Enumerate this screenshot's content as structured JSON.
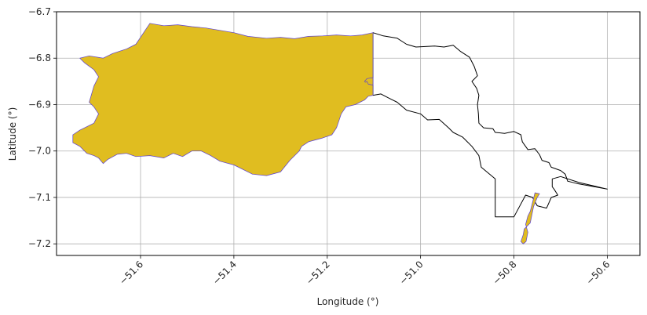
{
  "chart_data": {
    "type": "map",
    "xlabel": "Longitude (°)",
    "ylabel": "Latitude (°)",
    "xlim": [
      -51.78,
      -50.53
    ],
    "ylim": [
      -7.225,
      -6.7
    ],
    "grid": true,
    "x_ticks": [
      -51.6,
      -51.4,
      -51.2,
      -51.0,
      -50.8,
      -50.6
    ],
    "x_tick_labels": [
      "−51.6",
      "−51.4",
      "−51.2",
      "−51.0",
      "−50.8",
      "−50.6"
    ],
    "y_ticks": [
      -6.7,
      -6.8,
      -6.9,
      -7.0,
      -7.1,
      -7.2
    ],
    "y_tick_labels": [
      "−6.7",
      "−6.8",
      "−6.9",
      "−7.0",
      "−7.1",
      "−7.2"
    ],
    "colors": {
      "filled_region": "#e0bd20",
      "filled_edge": "#5a3fd6",
      "outline": "#000000",
      "grid": "#b0b0b0"
    },
    "regions": [
      {
        "style": "outline",
        "coords": [
          [
            -51.102,
            -6.745
          ],
          [
            -51.08,
            -6.752
          ],
          [
            -51.05,
            -6.757
          ],
          [
            -51.03,
            -6.77
          ],
          [
            -51.01,
            -6.776
          ],
          [
            -50.97,
            -6.774
          ],
          [
            -50.95,
            -6.776
          ],
          [
            -50.93,
            -6.772
          ],
          [
            -50.915,
            -6.785
          ],
          [
            -50.895,
            -6.798
          ],
          [
            -50.885,
            -6.818
          ],
          [
            -50.878,
            -6.838
          ],
          [
            -50.89,
            -6.85
          ],
          [
            -50.88,
            -6.865
          ],
          [
            -50.875,
            -6.88
          ],
          [
            -50.878,
            -6.9
          ],
          [
            -50.876,
            -6.92
          ],
          [
            -50.875,
            -6.94
          ],
          [
            -50.865,
            -6.95
          ],
          [
            -50.845,
            -6.952
          ],
          [
            -50.84,
            -6.96
          ],
          [
            -50.82,
            -6.962
          ],
          [
            -50.8,
            -6.958
          ],
          [
            -50.785,
            -6.965
          ],
          [
            -50.782,
            -6.98
          ],
          [
            -50.77,
            -6.997
          ],
          [
            -50.755,
            -6.995
          ],
          [
            -50.745,
            -7.008
          ],
          [
            -50.74,
            -7.02
          ],
          [
            -50.725,
            -7.025
          ],
          [
            -50.72,
            -7.035
          ],
          [
            -50.7,
            -7.042
          ],
          [
            -50.69,
            -7.05
          ],
          [
            -50.685,
            -7.065
          ],
          [
            -50.665,
            -7.07
          ],
          [
            -50.6,
            -7.082
          ],
          [
            -50.63,
            -7.075
          ],
          [
            -50.66,
            -7.068
          ],
          [
            -50.7,
            -7.055
          ],
          [
            -50.718,
            -7.06
          ],
          [
            -50.718,
            -7.077
          ],
          [
            -50.714,
            -7.082
          ],
          [
            -50.706,
            -7.095
          ],
          [
            -50.72,
            -7.1
          ],
          [
            -50.73,
            -7.123
          ],
          [
            -50.75,
            -7.118
          ],
          [
            -50.76,
            -7.1
          ],
          [
            -50.775,
            -7.095
          ],
          [
            -50.8,
            -7.142
          ],
          [
            -50.84,
            -7.142
          ],
          [
            -50.84,
            -7.06
          ],
          [
            -50.87,
            -7.035
          ],
          [
            -50.875,
            -7.01
          ],
          [
            -50.89,
            -6.99
          ],
          [
            -50.9,
            -6.98
          ],
          [
            -50.91,
            -6.97
          ],
          [
            -50.93,
            -6.96
          ],
          [
            -50.94,
            -6.95
          ],
          [
            -50.96,
            -6.932
          ],
          [
            -50.985,
            -6.933
          ],
          [
            -51.0,
            -6.92
          ],
          [
            -51.03,
            -6.912
          ],
          [
            -51.05,
            -6.895
          ],
          [
            -51.07,
            -6.885
          ],
          [
            -51.085,
            -6.877
          ],
          [
            -51.102,
            -6.88
          ],
          [
            -51.102,
            -6.745
          ]
        ]
      },
      {
        "style": "filled",
        "coords": [
          [
            -51.102,
            -6.745
          ],
          [
            -51.102,
            -6.88
          ],
          [
            -51.112,
            -6.882
          ],
          [
            -51.12,
            -6.89
          ],
          [
            -51.14,
            -6.9
          ],
          [
            -51.16,
            -6.905
          ],
          [
            -51.17,
            -6.92
          ],
          [
            -51.18,
            -6.95
          ],
          [
            -51.19,
            -6.965
          ],
          [
            -51.21,
            -6.972
          ],
          [
            -51.24,
            -6.98
          ],
          [
            -51.255,
            -6.99
          ],
          [
            -51.26,
            -7.0
          ],
          [
            -51.28,
            -7.02
          ],
          [
            -51.3,
            -7.045
          ],
          [
            -51.33,
            -7.053
          ],
          [
            -51.36,
            -7.05
          ],
          [
            -51.38,
            -7.04
          ],
          [
            -51.4,
            -7.03
          ],
          [
            -51.43,
            -7.022
          ],
          [
            -51.45,
            -7.01
          ],
          [
            -51.47,
            -7.0
          ],
          [
            -51.49,
            -7.0
          ],
          [
            -51.51,
            -7.012
          ],
          [
            -51.53,
            -7.005
          ],
          [
            -51.55,
            -7.015
          ],
          [
            -51.58,
            -7.01
          ],
          [
            -51.61,
            -7.012
          ],
          [
            -51.63,
            -7.005
          ],
          [
            -51.65,
            -7.007
          ],
          [
            -51.67,
            -7.018
          ],
          [
            -51.68,
            -7.027
          ],
          [
            -51.69,
            -7.015
          ],
          [
            -51.7,
            -7.01
          ],
          [
            -51.715,
            -7.005
          ],
          [
            -51.73,
            -6.99
          ],
          [
            -51.745,
            -6.982
          ],
          [
            -51.745,
            -6.965
          ],
          [
            -51.73,
            -6.955
          ],
          [
            -51.7,
            -6.94
          ],
          [
            -51.69,
            -6.92
          ],
          [
            -51.7,
            -6.905
          ],
          [
            -51.71,
            -6.895
          ],
          [
            -51.7,
            -6.86
          ],
          [
            -51.69,
            -6.84
          ],
          [
            -51.7,
            -6.825
          ],
          [
            -51.72,
            -6.81
          ],
          [
            -51.73,
            -6.8
          ],
          [
            -51.71,
            -6.795
          ],
          [
            -51.68,
            -6.8
          ],
          [
            -51.66,
            -6.79
          ],
          [
            -51.63,
            -6.78
          ],
          [
            -51.61,
            -6.77
          ],
          [
            -51.6,
            -6.755
          ],
          [
            -51.59,
            -6.74
          ],
          [
            -51.58,
            -6.725
          ],
          [
            -51.55,
            -6.73
          ],
          [
            -51.52,
            -6.728
          ],
          [
            -51.49,
            -6.732
          ],
          [
            -51.46,
            -6.735
          ],
          [
            -51.43,
            -6.74
          ],
          [
            -51.4,
            -6.745
          ],
          [
            -51.37,
            -6.753
          ],
          [
            -51.33,
            -6.757
          ],
          [
            -51.3,
            -6.755
          ],
          [
            -51.27,
            -6.758
          ],
          [
            -51.24,
            -6.753
          ],
          [
            -51.21,
            -6.752
          ],
          [
            -51.18,
            -6.75
          ],
          [
            -51.15,
            -6.752
          ],
          [
            -51.125,
            -6.75
          ],
          [
            -51.102,
            -6.745
          ]
        ]
      },
      {
        "style": "filled",
        "coords": [
          [
            -51.102,
            -6.842
          ],
          [
            -51.115,
            -6.844
          ],
          [
            -51.12,
            -6.85
          ],
          [
            -51.118,
            -6.852
          ],
          [
            -51.115,
            -6.85
          ],
          [
            -51.112,
            -6.856
          ],
          [
            -51.102,
            -6.858
          ],
          [
            -51.102,
            -6.842
          ]
        ]
      },
      {
        "style": "filled",
        "coords": [
          [
            -50.772,
            -7.162
          ],
          [
            -50.765,
            -7.155
          ],
          [
            -50.758,
            -7.12
          ],
          [
            -50.75,
            -7.1
          ],
          [
            -50.745,
            -7.092
          ],
          [
            -50.755,
            -7.09
          ],
          [
            -50.765,
            -7.13
          ],
          [
            -50.77,
            -7.14
          ],
          [
            -50.775,
            -7.158
          ],
          [
            -50.77,
            -7.175
          ],
          [
            -50.774,
            -7.195
          ],
          [
            -50.78,
            -7.2
          ],
          [
            -50.785,
            -7.195
          ],
          [
            -50.78,
            -7.18
          ],
          [
            -50.778,
            -7.168
          ],
          [
            -50.772,
            -7.162
          ]
        ]
      }
    ]
  }
}
